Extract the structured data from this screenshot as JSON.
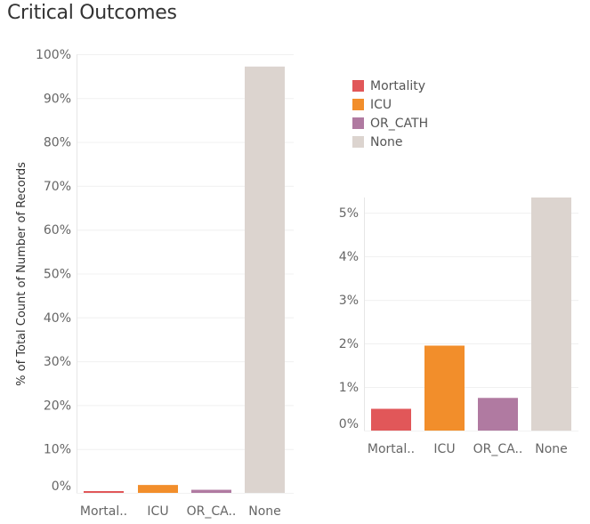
{
  "title": "Critical Outcomes",
  "legend": [
    {
      "label": "Mortality",
      "color": "#e15759"
    },
    {
      "label": "ICU",
      "color": "#f28e2b"
    },
    {
      "label": "OR_CATH",
      "color": "#b07aa1"
    },
    {
      "label": "None",
      "color": "#dcd4cf"
    }
  ],
  "chart_data": [
    {
      "type": "bar",
      "ylabel": "% of Total Count of Number of Records",
      "categories": [
        "Mortal..",
        "ICU",
        "OR_CA..",
        "None"
      ],
      "values": [
        0.3,
        1.8,
        0.7,
        97.2
      ],
      "colors": [
        "#e15759",
        "#f28e2b",
        "#b07aa1",
        "#dcd4cf"
      ],
      "ylim": [
        0,
        100
      ],
      "yticks": [
        0,
        10,
        20,
        30,
        40,
        50,
        60,
        70,
        80,
        90,
        100
      ],
      "ytick_labels": [
        "0%",
        "10%",
        "20%",
        "30%",
        "40%",
        "50%",
        "60%",
        "70%",
        "80%",
        "90%",
        "100%"
      ],
      "grid": true
    },
    {
      "type": "bar",
      "ylabel": "",
      "categories": [
        "Mortal..",
        "ICU",
        "OR_CA..",
        "None"
      ],
      "values": [
        0.5,
        1.95,
        0.75,
        5.35
      ],
      "colors": [
        "#e15759",
        "#f28e2b",
        "#b07aa1",
        "#dcd4cf"
      ],
      "ylim": [
        0,
        5.35
      ],
      "yticks": [
        0,
        1,
        2,
        3,
        4,
        5
      ],
      "ytick_labels": [
        "0%",
        "1%",
        "2%",
        "3%",
        "4%",
        "5%"
      ],
      "grid": true
    }
  ]
}
